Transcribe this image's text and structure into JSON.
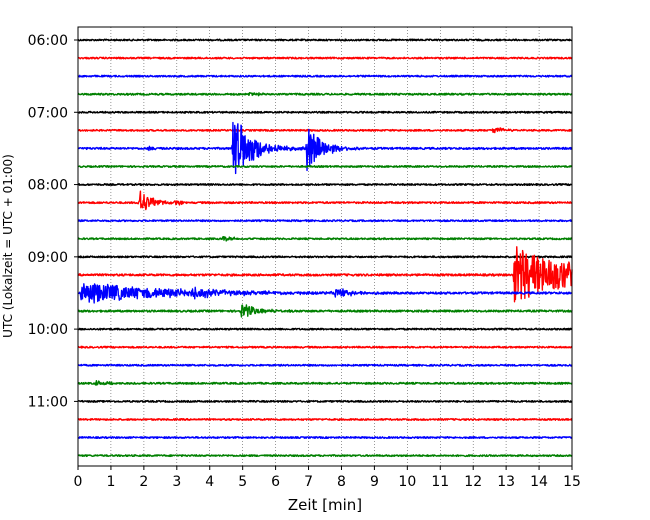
{
  "chart_data": {
    "type": "line",
    "title": "",
    "xlabel": "Zeit  [min]",
    "ylabel": "UTC (Lokalzeit = UTC + 01:00)",
    "xlim": [
      0,
      15
    ],
    "x_ticks": [
      0,
      1,
      2,
      3,
      4,
      5,
      6,
      7,
      8,
      9,
      10,
      11,
      12,
      13,
      14,
      15
    ],
    "y_tick_labels": [
      "06:00",
      "07:00",
      "08:00",
      "09:00",
      "10:00",
      "11:00"
    ],
    "y_tick_traces": [
      0,
      4,
      8,
      12,
      16,
      20
    ],
    "grid": "vertical dotted",
    "trace_colors": [
      "#000000",
      "#ff0000",
      "#0000ff",
      "#008000"
    ],
    "trace_interval_minutes": 15,
    "traces": [
      {
        "start": "06:00",
        "color": "#000000",
        "noise": 1.0,
        "events": []
      },
      {
        "start": "06:15",
        "color": "#ff0000",
        "noise": 1.0,
        "events": []
      },
      {
        "start": "06:30",
        "color": "#0000ff",
        "noise": 1.0,
        "events": []
      },
      {
        "start": "06:45",
        "color": "#008000",
        "noise": 1.1,
        "events": [
          {
            "t": 5.2,
            "amp": 2,
            "dur": 0.3
          }
        ]
      },
      {
        "start": "07:00",
        "color": "#000000",
        "noise": 1.0,
        "events": []
      },
      {
        "start": "07:15",
        "color": "#ff0000",
        "noise": 1.0,
        "events": [
          {
            "t": 12.6,
            "amp": 4,
            "dur": 0.3
          }
        ]
      },
      {
        "start": "07:30",
        "color": "#0000ff",
        "noise": 1.2,
        "events": [
          {
            "t": 2.15,
            "amp": 3,
            "dur": 0.15
          },
          {
            "t": 4.7,
            "amp": 36,
            "dur": 0.55
          },
          {
            "t": 6.95,
            "amp": 24,
            "dur": 0.45
          }
        ]
      },
      {
        "start": "07:45",
        "color": "#008000",
        "noise": 1.0,
        "events": []
      },
      {
        "start": "08:00",
        "color": "#000000",
        "noise": 1.0,
        "events": []
      },
      {
        "start": "08:15",
        "color": "#ff0000",
        "noise": 1.1,
        "events": [
          {
            "t": 1.85,
            "amp": 14,
            "dur": 0.35
          },
          {
            "t": 2.95,
            "amp": 3,
            "dur": 0.15
          }
        ]
      },
      {
        "start": "08:30",
        "color": "#0000ff",
        "noise": 1.0,
        "events": []
      },
      {
        "start": "08:45",
        "color": "#008000",
        "noise": 1.0,
        "events": [
          {
            "t": 4.4,
            "amp": 2.5,
            "dur": 0.3
          }
        ]
      },
      {
        "start": "09:00",
        "color": "#000000",
        "noise": 1.0,
        "events": []
      },
      {
        "start": "09:15",
        "color": "#ff0000",
        "noise": 1.3,
        "events": [
          {
            "t": 13.25,
            "amp": 30,
            "dur": 1.8
          }
        ]
      },
      {
        "start": "09:30",
        "color": "#0000ff",
        "noise": 1.3,
        "events": [
          {
            "t": 0.1,
            "amp": 11,
            "dur": 2.5
          },
          {
            "t": 3.45,
            "amp": 6,
            "dur": 0.6
          },
          {
            "t": 7.8,
            "amp": 5,
            "dur": 0.5
          }
        ]
      },
      {
        "start": "09:45",
        "color": "#008000",
        "noise": 1.2,
        "events": [
          {
            "t": 4.95,
            "amp": 8,
            "dur": 0.45
          }
        ]
      },
      {
        "start": "10:00",
        "color": "#000000",
        "noise": 1.0,
        "events": []
      },
      {
        "start": "10:15",
        "color": "#ff0000",
        "noise": 1.0,
        "events": []
      },
      {
        "start": "10:30",
        "color": "#0000ff",
        "noise": 1.0,
        "events": []
      },
      {
        "start": "10:45",
        "color": "#008000",
        "noise": 1.1,
        "events": [
          {
            "t": 0.55,
            "amp": 2.5,
            "dur": 0.3
          }
        ]
      },
      {
        "start": "11:00",
        "color": "#000000",
        "noise": 1.0,
        "events": []
      },
      {
        "start": "11:15",
        "color": "#ff0000",
        "noise": 1.0,
        "events": []
      },
      {
        "start": "11:30",
        "color": "#0000ff",
        "noise": 1.0,
        "events": []
      },
      {
        "start": "11:45",
        "color": "#008000",
        "noise": 1.0,
        "events": []
      }
    ]
  }
}
